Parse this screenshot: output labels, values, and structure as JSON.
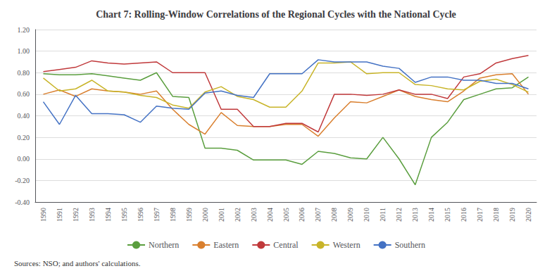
{
  "chart_data": {
    "type": "line",
    "title": "Chart 7: Rolling-Window Correlations of the Regional Cycles with the National Cycle",
    "annotations": [
      "Sources: NSO; and authors' calculations."
    ],
    "categories": [
      "1990",
      "1991",
      "1992",
      "1993",
      "1994",
      "1995",
      "1996",
      "1997",
      "1998",
      "1999",
      "2000",
      "2001",
      "2002",
      "2003",
      "2004",
      "2005",
      "2006",
      "2007",
      "2008",
      "2009",
      "2010",
      "2011",
      "2012",
      "2013",
      "2014",
      "2015",
      "2016",
      "2017",
      "2018",
      "2019",
      "2020"
    ],
    "series": [
      {
        "name": "Northern",
        "color": "#5a9e3e",
        "values": [
          0.79,
          0.78,
          0.78,
          0.79,
          0.77,
          0.75,
          0.73,
          0.8,
          0.58,
          0.57,
          0.1,
          0.1,
          0.08,
          -0.01,
          -0.01,
          -0.01,
          -0.05,
          0.07,
          0.05,
          0.01,
          0.0,
          0.2,
          0.0,
          -0.24,
          0.2,
          0.34,
          0.55,
          0.6,
          0.65,
          0.66,
          0.76
        ]
      },
      {
        "name": "Eastern",
        "color": "#d97f2e",
        "values": [
          0.6,
          0.64,
          0.58,
          0.65,
          0.63,
          0.62,
          0.6,
          0.63,
          0.46,
          0.32,
          0.23,
          0.43,
          0.31,
          0.3,
          0.3,
          0.32,
          0.32,
          0.21,
          0.38,
          0.53,
          0.52,
          0.58,
          0.64,
          0.58,
          0.55,
          0.53,
          0.63,
          0.75,
          0.78,
          0.79,
          0.6
        ]
      },
      {
        "name": "Central",
        "color": "#c0393b",
        "values": [
          0.81,
          0.83,
          0.85,
          0.91,
          0.89,
          0.88,
          0.89,
          0.9,
          0.8,
          0.8,
          0.8,
          0.46,
          0.46,
          0.3,
          0.3,
          0.33,
          0.33,
          0.25,
          0.6,
          0.6,
          0.59,
          0.6,
          0.64,
          0.6,
          0.6,
          0.56,
          0.76,
          0.79,
          0.89,
          0.93,
          0.96
        ]
      },
      {
        "name": "Western",
        "color": "#c8b428",
        "values": [
          0.75,
          0.63,
          0.65,
          0.73,
          0.63,
          0.62,
          0.59,
          0.57,
          0.5,
          0.47,
          0.62,
          0.67,
          0.58,
          0.55,
          0.48,
          0.48,
          0.63,
          0.89,
          0.89,
          0.9,
          0.79,
          0.8,
          0.8,
          0.69,
          0.68,
          0.65,
          0.64,
          0.72,
          0.74,
          0.69,
          0.62
        ]
      },
      {
        "name": "Southern",
        "color": "#4472c4",
        "values": [
          0.53,
          0.32,
          0.59,
          0.42,
          0.42,
          0.41,
          0.34,
          0.49,
          0.47,
          0.46,
          0.61,
          0.63,
          0.59,
          0.57,
          0.79,
          0.79,
          0.79,
          0.92,
          0.9,
          0.9,
          0.9,
          0.86,
          0.84,
          0.71,
          0.76,
          0.76,
          0.73,
          0.73,
          0.7,
          0.7,
          0.65
        ]
      }
    ],
    "ylim": [
      -0.4,
      1.2
    ],
    "yticks": [
      {
        "value": -0.4,
        "label": "-0.40"
      },
      {
        "value": -0.2,
        "label": "-0.20"
      },
      {
        "value": 0.0,
        "label": "0.00"
      },
      {
        "value": 0.2,
        "label": "0.20"
      },
      {
        "value": 0.4,
        "label": "0.40"
      },
      {
        "value": 0.6,
        "label": "0.60"
      },
      {
        "value": 0.8,
        "label": "0.80"
      },
      {
        "value": 1.0,
        "label": "1.00"
      },
      {
        "value": 1.2,
        "label": "1.20"
      }
    ],
    "grid": true,
    "legend": "bottom"
  }
}
